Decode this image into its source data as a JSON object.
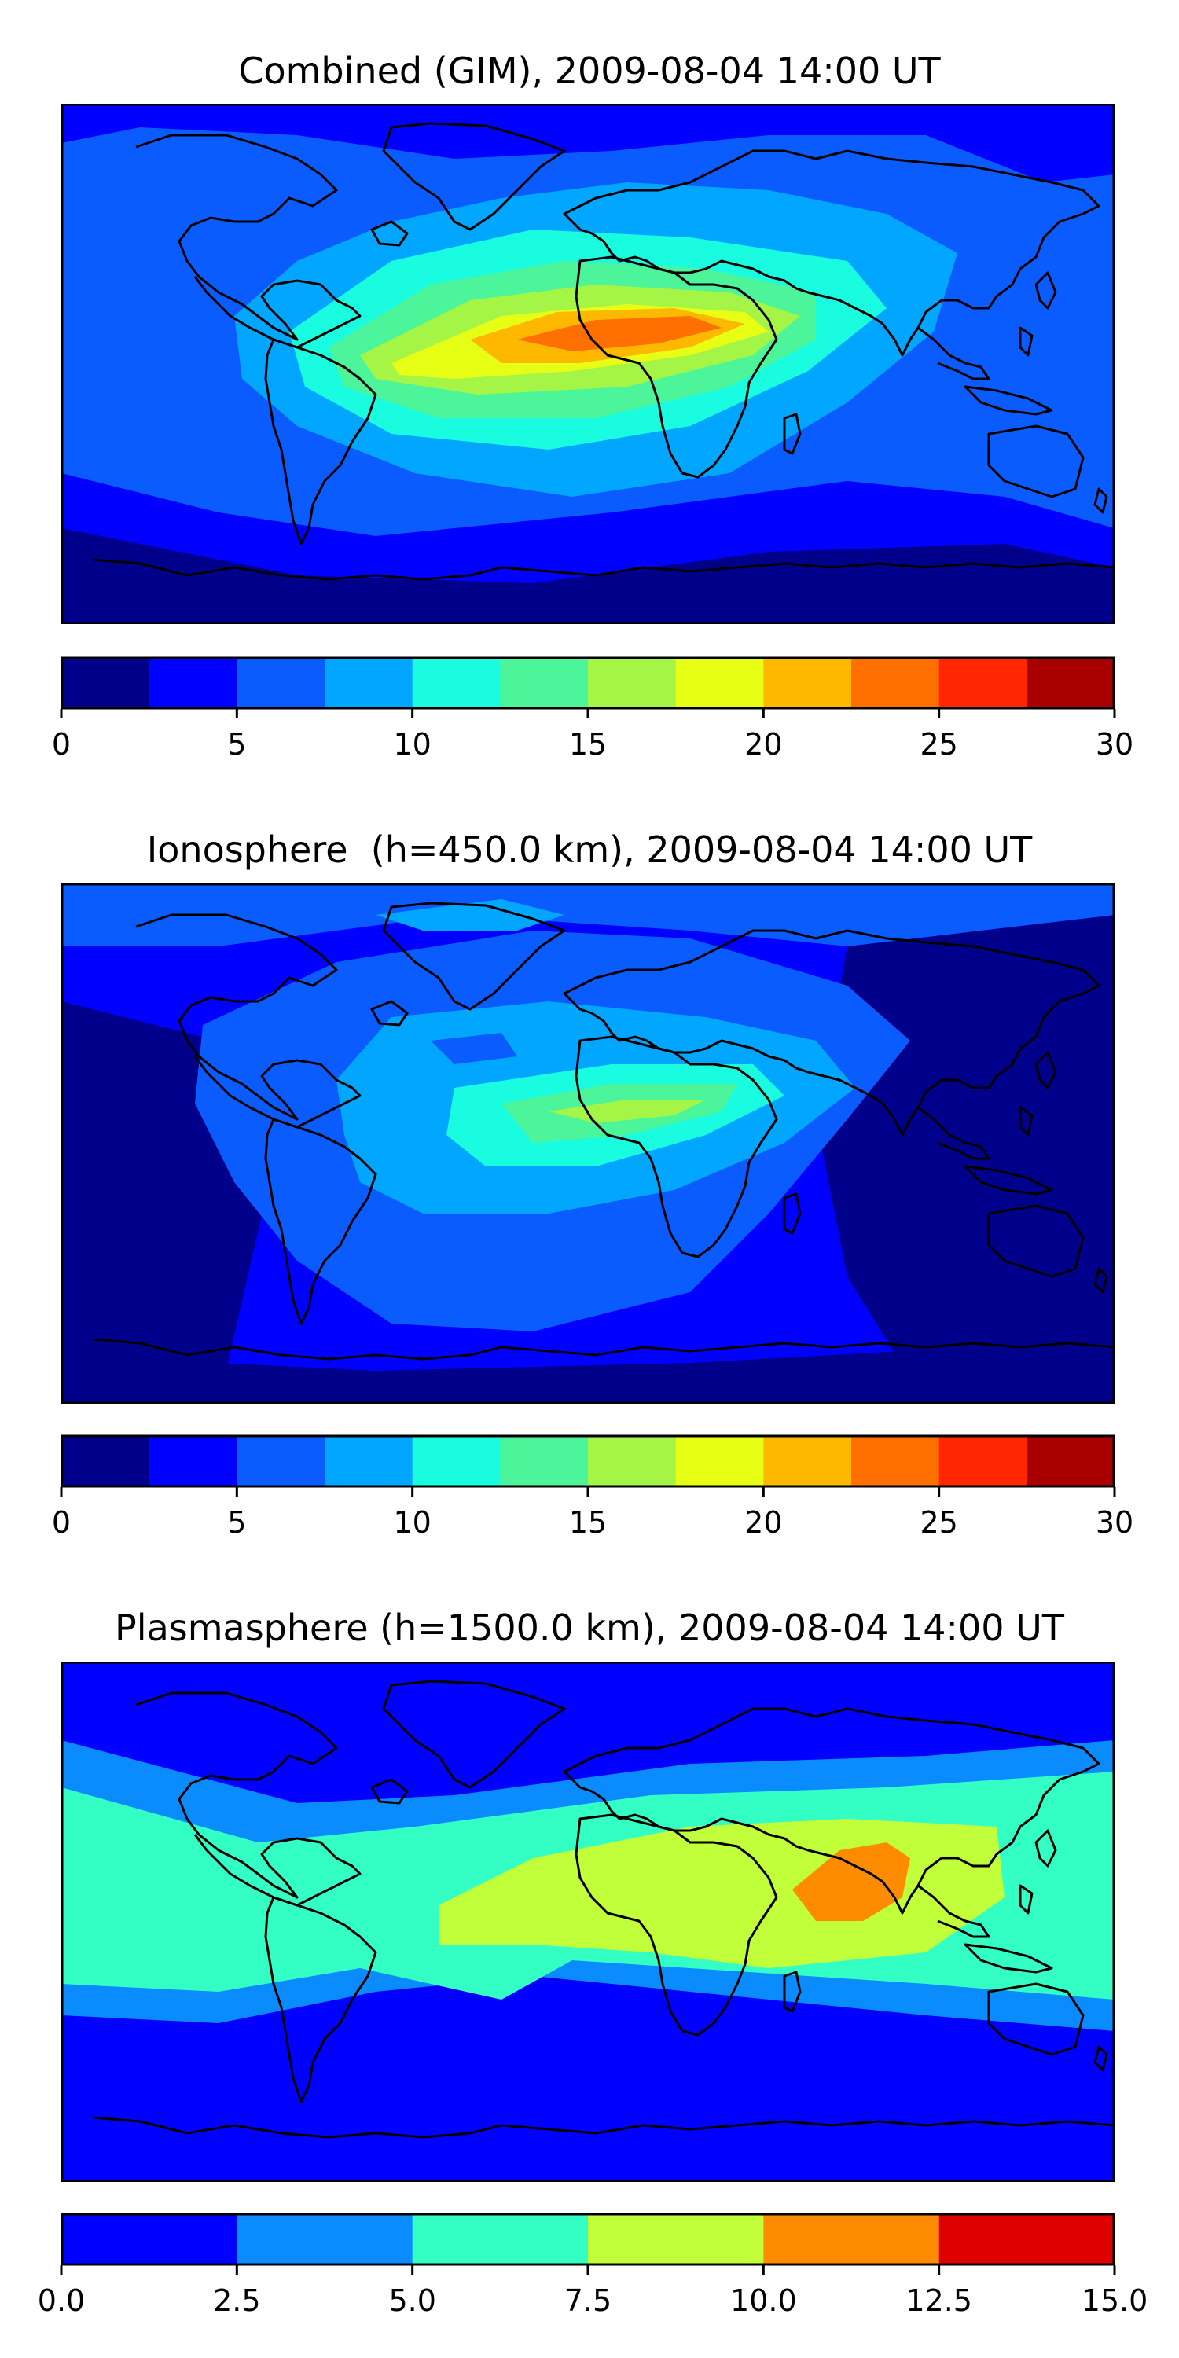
{
  "panels": [
    {
      "title": "Combined (GIM), 2009-08-04 14:00 UT",
      "colorbar": {
        "min": 0,
        "max": 30,
        "bounds": [
          0,
          2.5,
          5,
          7.5,
          10,
          12.5,
          15,
          17.5,
          20,
          22.5,
          25,
          27.5,
          30
        ],
        "colors": [
          "#00008b",
          "#0000ff",
          "#0a5cff",
          "#00a6ff",
          "#1afce0",
          "#4cf59a",
          "#a4f545",
          "#e6ff14",
          "#ffb800",
          "#ff7000",
          "#ff2600",
          "#a80000"
        ],
        "ticks": [
          0,
          5,
          10,
          15,
          20,
          25,
          30
        ],
        "tick_labels": [
          "0",
          "5",
          "10",
          "15",
          "20",
          "25",
          "30"
        ]
      }
    },
    {
      "title": "Ionosphere  (h=450.0 km), 2009-08-04 14:00 UT",
      "colorbar": {
        "min": 0,
        "max": 30,
        "bounds": [
          0,
          2.5,
          5,
          7.5,
          10,
          12.5,
          15,
          17.5,
          20,
          22.5,
          25,
          27.5,
          30
        ],
        "colors": [
          "#00008b",
          "#0000ff",
          "#0a5cff",
          "#00a6ff",
          "#1afce0",
          "#4cf59a",
          "#a4f545",
          "#e6ff14",
          "#ffb800",
          "#ff7000",
          "#ff2600",
          "#a80000"
        ],
        "ticks": [
          0,
          5,
          10,
          15,
          20,
          25,
          30
        ],
        "tick_labels": [
          "0",
          "5",
          "10",
          "15",
          "20",
          "25",
          "30"
        ]
      }
    },
    {
      "title": "Plasmasphere (h=1500.0 km), 2009-08-04 14:00 UT",
      "colorbar": {
        "min": 0,
        "max": 15,
        "bounds": [
          0,
          2.5,
          5,
          7.5,
          10,
          12.5,
          15
        ],
        "colors": [
          "#0000ff",
          "#0a8cff",
          "#33ffc4",
          "#c0ff3a",
          "#ff8c00",
          "#dd0000"
        ],
        "ticks": [
          0,
          2.5,
          5,
          7.5,
          10,
          12.5,
          15
        ],
        "tick_labels": [
          "0.0",
          "2.5",
          "5.0",
          "7.5",
          "10.0",
          "12.5",
          "15.0"
        ]
      }
    }
  ]
}
